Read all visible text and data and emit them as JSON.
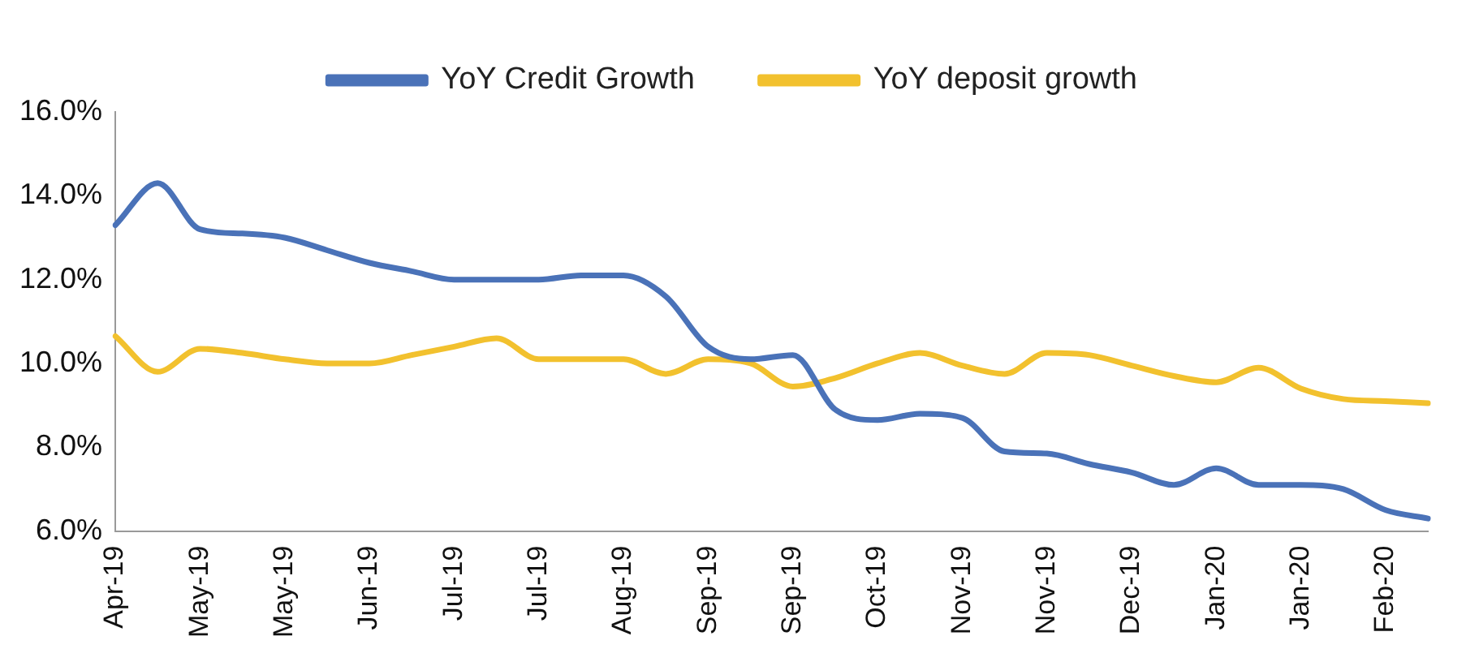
{
  "chart_data": {
    "type": "line",
    "categories": [
      "Apr-19",
      null,
      "May-19",
      null,
      "May-19",
      null,
      "Jun-19",
      null,
      "Jul-19",
      null,
      "Jul-19",
      null,
      "Aug-19",
      null,
      "Sep-19",
      null,
      "Sep-19",
      null,
      "Oct-19",
      null,
      "Nov-19",
      null,
      "Nov-19",
      null,
      "Dec-19",
      null,
      "Jan-20",
      null,
      "Jan-20",
      null,
      "Feb-20",
      null
    ],
    "series": [
      {
        "name": "YoY Credit Growth",
        "color": "#4a72b8",
        "values": [
          13.3,
          14.3,
          13.2,
          13.1,
          13.0,
          12.7,
          12.4,
          12.2,
          12.0,
          12.0,
          12.0,
          12.1,
          12.1,
          11.6,
          10.4,
          10.1,
          10.2,
          8.9,
          8.65,
          8.8,
          8.7,
          7.9,
          7.85,
          7.6,
          7.4,
          7.1,
          7.5,
          7.1,
          7.1,
          7.0,
          6.5,
          6.3
        ]
      },
      {
        "name": "YoY deposit growth",
        "color": "#f2c12e",
        "values": [
          10.65,
          9.8,
          10.35,
          10.25,
          10.1,
          10.0,
          10.0,
          10.2,
          10.4,
          10.6,
          10.1,
          10.1,
          10.1,
          9.75,
          10.1,
          10.0,
          9.45,
          9.65,
          10.0,
          10.25,
          9.95,
          9.75,
          10.25,
          10.2,
          9.95,
          9.7,
          9.55,
          9.9,
          9.4,
          9.15,
          9.1,
          9.05
        ]
      }
    ],
    "ylim": [
      6,
      16
    ],
    "yticks": [
      {
        "value": 6,
        "label": "6.0%"
      },
      {
        "value": 8,
        "label": "8.0%"
      },
      {
        "value": 10,
        "label": "10.0%"
      },
      {
        "value": 12,
        "label": "12.0%"
      },
      {
        "value": 14,
        "label": "14.0%"
      },
      {
        "value": 16,
        "label": "16.0%"
      }
    ],
    "grid": false,
    "legend": "top",
    "marker": "none",
    "line_style": "solid"
  }
}
